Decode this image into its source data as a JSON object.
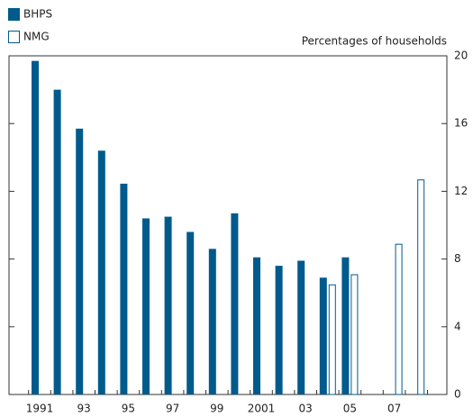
{
  "chart_data": {
    "type": "bar",
    "subtitle": "Percentages of households",
    "categories": [
      "1991",
      null,
      "93",
      null,
      "95",
      null,
      "97",
      null,
      "99",
      null,
      "2001",
      null,
      "03",
      null,
      "05",
      null,
      "07",
      null
    ],
    "series": [
      {
        "name": "BHPS",
        "color": "#005a8c",
        "filled": true,
        "values": [
          19.7,
          18.0,
          15.7,
          14.4,
          12.45,
          10.4,
          10.5,
          9.6,
          8.6,
          10.7,
          8.1,
          7.6,
          7.9,
          6.9,
          8.1,
          null,
          null,
          null
        ]
      },
      {
        "name": "NMG",
        "color": "#005a8c",
        "filled": false,
        "values": [
          null,
          null,
          null,
          null,
          null,
          null,
          null,
          null,
          null,
          null,
          null,
          null,
          null,
          6.5,
          7.1,
          null,
          8.9,
          12.7
        ]
      }
    ],
    "ylim": [
      0,
      20
    ],
    "yticks": [
      0,
      4,
      8,
      12,
      16,
      20
    ],
    "y_axis_side": "right",
    "grid": false
  }
}
